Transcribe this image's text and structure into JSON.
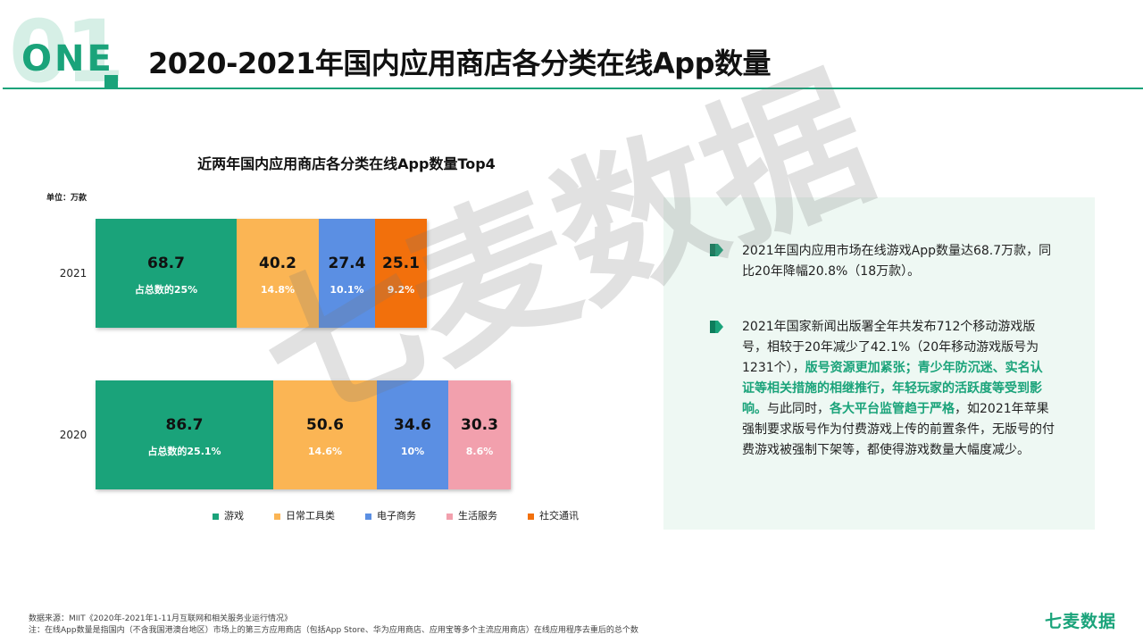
{
  "header": {
    "section_number": "01",
    "section_word": "ONE",
    "title": "2020-2021年国内应用商店各分类在线App数量"
  },
  "watermark": "七麦数据",
  "chart_data": {
    "type": "bar",
    "orientation": "horizontal-stacked",
    "title": "近两年国内应用商店各分类在线App数量Top4",
    "unit": "单位：万款",
    "categories": [
      "2021",
      "2020"
    ],
    "rows": [
      {
        "year": "2021",
        "segments": [
          {
            "series": "游戏",
            "value": 68.7,
            "value_label": "68.7",
            "share_label": "占总数的25%"
          },
          {
            "series": "日常工具类",
            "value": 40.2,
            "value_label": "40.2",
            "share_label": "14.8%"
          },
          {
            "series": "电子商务",
            "value": 27.4,
            "value_label": "27.4",
            "share_label": "10.1%"
          },
          {
            "series": "社交通讯",
            "value": 25.1,
            "value_label": "25.1",
            "share_label": "9.2%"
          }
        ]
      },
      {
        "year": "2020",
        "segments": [
          {
            "series": "游戏",
            "value": 86.7,
            "value_label": "86.7",
            "share_label": "占总数的25.1%"
          },
          {
            "series": "日常工具类",
            "value": 50.6,
            "value_label": "50.6",
            "share_label": "14.6%"
          },
          {
            "series": "电子商务",
            "value": 34.6,
            "value_label": "34.6",
            "share_label": "10%"
          },
          {
            "series": "生活服务",
            "value": 30.3,
            "value_label": "30.3",
            "share_label": "8.6%"
          }
        ]
      }
    ],
    "legend": [
      {
        "name": "游戏",
        "color": "#1aa37a"
      },
      {
        "name": "日常工具类",
        "color": "#fbb554"
      },
      {
        "name": "电子商务",
        "color": "#5b8fe3"
      },
      {
        "name": "生活服务",
        "color": "#f2a0ad"
      },
      {
        "name": "社交通讯",
        "color": "#f2700c"
      }
    ]
  },
  "insights": {
    "p1": "2021年国内应用市场在线游戏App数量达68.7万款，同比20年降幅20.8%（18万款）。",
    "p2_a": "2021年国家新闻出版署全年共发布712个移动游戏版号，相较于20年减少了42.1%（20年移动游戏版号为1231个），",
    "p2_hl1": "版号资源更加紧张；青少年防沉迷、实名认证等相关措施的相继推行，年轻玩家的活跃度等受到影响。",
    "p2_b": "与此同时，",
    "p2_hl2": "各大平台监管趋于严格",
    "p2_c": "，如2021年苹果强制要求版号作为付费游戏上传的前置条件，无版号的付费游戏被强制下架等，都使得游戏数量大幅度减少。"
  },
  "footer": {
    "source": "数据来源：MIIT《2020年-2021年1-11月互联网和相关服务业运行情况》",
    "note": "注：在线App数量是指国内（不含我国港澳台地区）市场上的第三方应用商店（包括App Store、华为应用商店、应用宝等多个主流应用商店）在线应用程序去重后的总个数",
    "brand": "七麦数据"
  },
  "colors": {
    "accent": "#1aa37a",
    "panel": "#eef8f3"
  }
}
